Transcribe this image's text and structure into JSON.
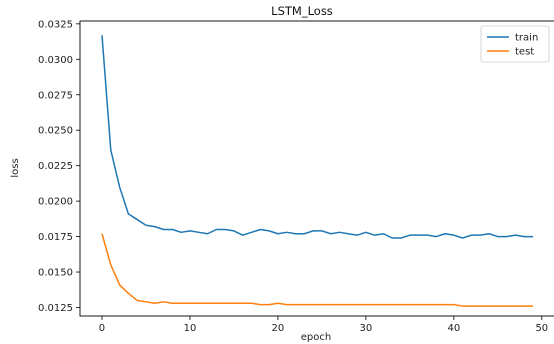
{
  "chart_data": {
    "type": "line",
    "title": "LSTM_Loss",
    "xlabel": "epoch",
    "ylabel": "loss",
    "xlim": [
      -2.5,
      51.5
    ],
    "ylim": [
      0.0119,
      0.0327
    ],
    "xticks": [
      0,
      10,
      20,
      30,
      40,
      50
    ],
    "yticks": [
      0.0125,
      0.015,
      0.0175,
      0.02,
      0.0225,
      0.025,
      0.0275,
      0.03,
      0.0325
    ],
    "ytick_labels": [
      "0.0125",
      "0.0150",
      "0.0175",
      "0.0200",
      "0.0225",
      "0.0250",
      "0.0275",
      "0.0300",
      "0.0325"
    ],
    "grid": false,
    "legend_position": "top-right",
    "x": [
      0,
      1,
      2,
      3,
      4,
      5,
      6,
      7,
      8,
      9,
      10,
      11,
      12,
      13,
      14,
      15,
      16,
      17,
      18,
      19,
      20,
      21,
      22,
      23,
      24,
      25,
      26,
      27,
      28,
      29,
      30,
      31,
      32,
      33,
      34,
      35,
      36,
      37,
      38,
      39,
      40,
      41,
      42,
      43,
      44,
      45,
      46,
      47,
      48,
      49
    ],
    "series": [
      {
        "name": "train",
        "color": "#1f77b4",
        "values": [
          0.0317,
          0.0236,
          0.021,
          0.0191,
          0.0187,
          0.0183,
          0.0182,
          0.018,
          0.018,
          0.0178,
          0.0179,
          0.0178,
          0.0177,
          0.018,
          0.018,
          0.0179,
          0.0176,
          0.0178,
          0.018,
          0.0179,
          0.0177,
          0.0178,
          0.0177,
          0.0177,
          0.0179,
          0.0179,
          0.0177,
          0.0178,
          0.0177,
          0.0176,
          0.0178,
          0.0176,
          0.0177,
          0.0174,
          0.0174,
          0.0176,
          0.0176,
          0.0176,
          0.0175,
          0.0177,
          0.0176,
          0.0174,
          0.0176,
          0.0176,
          0.0177,
          0.0175,
          0.0175,
          0.0176,
          0.0175,
          0.0175
        ]
      },
      {
        "name": "test",
        "color": "#ff7f0e",
        "values": [
          0.0177,
          0.0155,
          0.0141,
          0.0135,
          0.013,
          0.0129,
          0.0128,
          0.0129,
          0.0128,
          0.0128,
          0.0128,
          0.0128,
          0.0128,
          0.0128,
          0.0128,
          0.0128,
          0.0128,
          0.0128,
          0.0127,
          0.0127,
          0.0128,
          0.0127,
          0.0127,
          0.0127,
          0.0127,
          0.0127,
          0.0127,
          0.0127,
          0.0127,
          0.0127,
          0.0127,
          0.0127,
          0.0127,
          0.0127,
          0.0127,
          0.0127,
          0.0127,
          0.0127,
          0.0127,
          0.0127,
          0.0127,
          0.0126,
          0.0126,
          0.0126,
          0.0126,
          0.0126,
          0.0126,
          0.0126,
          0.0126,
          0.0126
        ]
      }
    ]
  }
}
